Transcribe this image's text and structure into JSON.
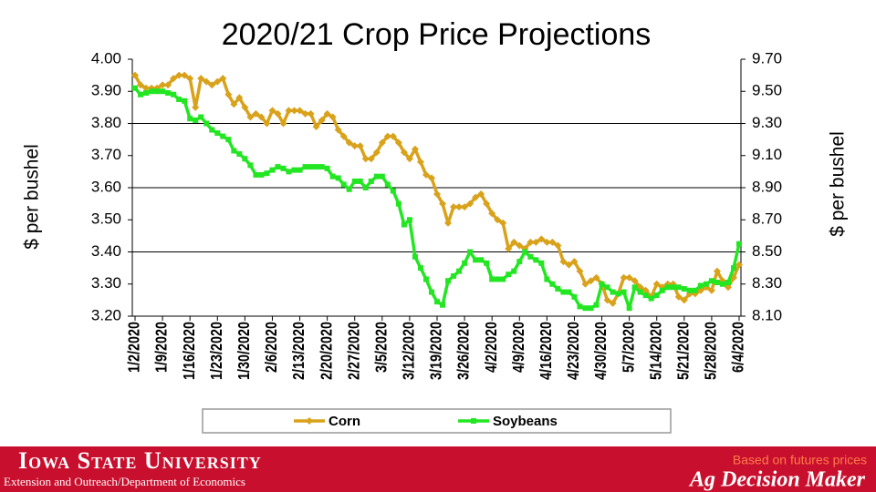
{
  "chart_data": {
    "type": "line",
    "title": "2020/21 Crop Price Projections",
    "y_label": "$ per bushel",
    "y2_label": "$ per bushel",
    "categories": [
      "1/2/2020",
      null,
      null,
      null,
      null,
      "1/9/2020",
      null,
      null,
      null,
      null,
      "1/16/2020",
      null,
      null,
      null,
      null,
      "1/23/2020",
      null,
      null,
      null,
      null,
      "1/30/2020",
      null,
      null,
      null,
      null,
      "2/6/2020",
      null,
      null,
      null,
      null,
      "2/13/2020",
      null,
      null,
      null,
      null,
      "2/20/2020",
      null,
      null,
      null,
      null,
      "2/27/2020",
      null,
      null,
      null,
      null,
      "3/5/2020",
      null,
      null,
      null,
      null,
      "3/12/2020",
      null,
      null,
      null,
      null,
      "3/19/2020",
      null,
      null,
      null,
      null,
      "3/26/2020",
      null,
      null,
      null,
      null,
      "4/2/2020",
      null,
      null,
      null,
      null,
      "4/9/2020",
      null,
      null,
      null,
      null,
      "4/16/2020",
      null,
      null,
      null,
      null,
      "4/23/2020",
      null,
      null,
      null,
      null,
      "4/30/2020",
      null,
      null,
      null,
      null,
      "5/7/2020",
      null,
      null,
      null,
      null,
      "5/14/2020",
      null,
      null,
      null,
      null,
      "5/21/2020",
      null,
      null,
      null,
      null,
      "5/28/2020",
      null,
      null,
      null,
      null,
      "6/4/2020"
    ],
    "series": [
      {
        "name": "Corn",
        "color": "#d9a21b",
        "marker": "diamond",
        "values": [
          3.95,
          3.92,
          3.91,
          3.91,
          3.91,
          3.92,
          3.92,
          3.94,
          3.95,
          3.95,
          3.94,
          3.85,
          3.94,
          3.93,
          3.92,
          3.93,
          3.94,
          3.89,
          3.86,
          3.88,
          3.85,
          3.82,
          3.83,
          3.82,
          3.8,
          3.84,
          3.83,
          3.8,
          3.84,
          3.84,
          3.84,
          3.83,
          3.83,
          3.79,
          3.81,
          3.83,
          3.82,
          3.78,
          3.76,
          3.74,
          3.73,
          3.73,
          3.69,
          3.69,
          3.71,
          3.74,
          3.76,
          3.76,
          3.74,
          3.71,
          3.69,
          3.72,
          3.68,
          3.64,
          3.63,
          3.58,
          3.55,
          3.49,
          3.54,
          3.54,
          3.54,
          3.55,
          3.57,
          3.58,
          3.55,
          3.52,
          3.5,
          3.49,
          3.41,
          3.43,
          3.42,
          3.41,
          3.43,
          3.43,
          3.44,
          3.43,
          3.43,
          3.42,
          3.37,
          3.36,
          3.37,
          3.34,
          3.3,
          3.31,
          3.32,
          3.3,
          3.25,
          3.24,
          3.27,
          3.32,
          3.32,
          3.31,
          3.29,
          3.28,
          3.26,
          3.3,
          3.29,
          3.3,
          3.3,
          3.26,
          3.25,
          3.27,
          3.27,
          3.28,
          3.29,
          3.28,
          3.34,
          3.31,
          3.29,
          3.32,
          3.36
        ]
      },
      {
        "name": "Soybeans",
        "color": "#22e622",
        "marker": "square",
        "axis": "y2",
        "values": [
          9.52,
          9.48,
          9.49,
          9.5,
          9.5,
          9.5,
          9.49,
          9.48,
          9.45,
          9.44,
          9.33,
          9.32,
          9.34,
          9.3,
          9.26,
          9.24,
          9.22,
          9.2,
          9.13,
          9.11,
          9.08,
          9.04,
          8.98,
          8.98,
          8.99,
          9.01,
          9.03,
          9.02,
          9.0,
          9.01,
          9.01,
          9.03,
          9.03,
          9.03,
          9.03,
          9.02,
          8.97,
          8.96,
          8.92,
          8.89,
          8.94,
          8.94,
          8.9,
          8.94,
          8.97,
          8.97,
          8.92,
          8.88,
          8.8,
          8.67,
          8.7,
          8.47,
          8.4,
          8.33,
          8.25,
          8.19,
          8.17,
          8.32,
          8.35,
          8.38,
          8.43,
          8.5,
          8.45,
          8.45,
          8.43,
          8.33,
          8.33,
          8.33,
          8.36,
          8.38,
          8.44,
          8.5,
          8.47,
          8.45,
          8.43,
          8.33,
          8.3,
          8.27,
          8.25,
          8.25,
          8.22,
          8.16,
          8.15,
          8.15,
          8.17,
          8.3,
          8.28,
          8.25,
          8.24,
          8.25,
          8.15,
          8.28,
          8.25,
          8.23,
          8.21,
          8.23,
          8.26,
          8.28,
          8.28,
          8.28,
          8.27,
          8.26,
          8.26,
          8.29,
          8.3,
          8.32,
          8.31,
          8.3,
          8.31,
          8.4,
          8.55
        ]
      }
    ],
    "ylim": [
      3.2,
      4.0
    ],
    "yticks": [
      {
        "value": 3.2,
        "label": "3.20"
      },
      {
        "value": 3.3,
        "label": "3.30"
      },
      {
        "value": 3.4,
        "label": "3.40"
      },
      {
        "value": 3.5,
        "label": "3.50"
      },
      {
        "value": 3.6,
        "label": "3.60"
      },
      {
        "value": 3.7,
        "label": "3.70"
      },
      {
        "value": 3.8,
        "label": "3.80"
      },
      {
        "value": 3.9,
        "label": "3.90"
      },
      {
        "value": 4.0,
        "label": "4.00"
      }
    ],
    "y2lim": [
      8.1,
      9.7
    ],
    "y2ticks": [
      {
        "value": 8.1,
        "label": "8.10"
      },
      {
        "value": 8.3,
        "label": "8.30"
      },
      {
        "value": 8.5,
        "label": "8.50"
      },
      {
        "value": 8.7,
        "label": "8.70"
      },
      {
        "value": 8.9,
        "label": "8.90"
      },
      {
        "value": 9.1,
        "label": "9.10"
      },
      {
        "value": 9.3,
        "label": "9.30"
      },
      {
        "value": 9.5,
        "label": "9.50"
      },
      {
        "value": 9.7,
        "label": "9.70"
      }
    ],
    "grid": true,
    "legend": "bottom"
  },
  "footer": {
    "university": "Iowa State University",
    "department": "Extension and Outreach/Department of Economics",
    "note": "Based on futures prices",
    "brand": "Ag Decision Maker"
  }
}
